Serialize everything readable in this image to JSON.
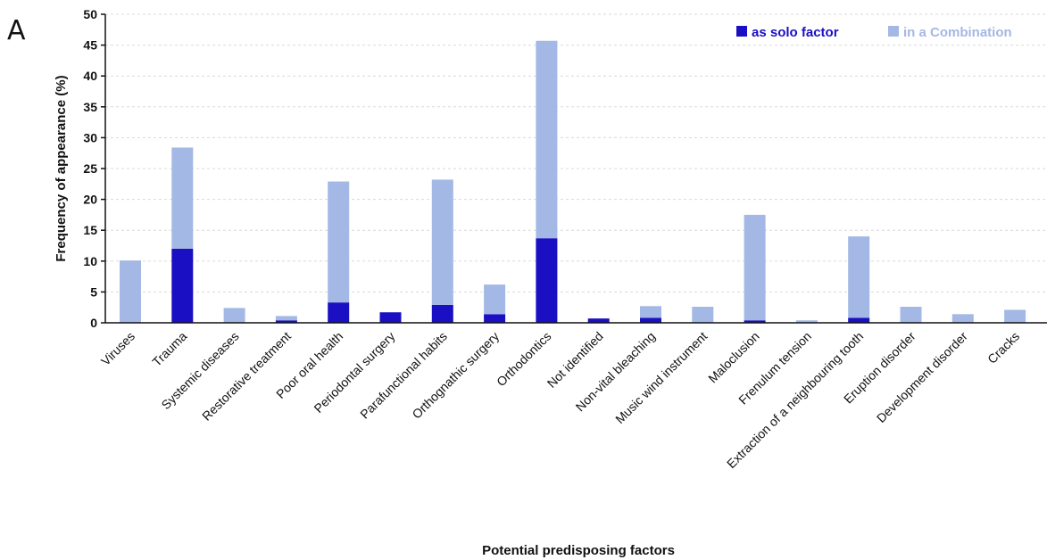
{
  "panel_label": "A",
  "chart_data": {
    "type": "bar",
    "stacked": true,
    "categories": [
      "Viruses",
      "Trauma",
      "Systemic diseases",
      "Restorative treatment",
      "Poor oral health",
      "Periodontal surgery",
      "Parafunctional habits",
      "Orthognathic surgery",
      "Orthodontics",
      "Not identified",
      "Non-vital bleaching",
      "Music wind instrument",
      "Maloclusion",
      "Frenulum tension",
      "Extraction of a neighbouring tooth",
      "Eruption disorder",
      "Development disorder",
      "Cracks"
    ],
    "series": [
      {
        "name": "as solo factor",
        "color": "#1a0fc2",
        "values": [
          0,
          12.0,
          0,
          0.4,
          3.3,
          1.7,
          2.9,
          1.4,
          13.7,
          0.7,
          0.8,
          0,
          0.4,
          0,
          0.8,
          0,
          0,
          0
        ]
      },
      {
        "name": "in a Combination",
        "color": "#a3b8e4",
        "values": [
          10.1,
          16.4,
          2.4,
          0.7,
          19.6,
          0,
          20.3,
          4.8,
          32.0,
          0,
          1.9,
          2.6,
          17.1,
          0.4,
          13.2,
          2.6,
          1.4,
          2.1
        ]
      }
    ],
    "xlabel": "Potential predisposing factors",
    "ylabel": "Frequency of appearance (%)",
    "ylim": [
      0,
      50
    ],
    "yticks": [
      0,
      5,
      10,
      15,
      20,
      25,
      30,
      35,
      40,
      45,
      50
    ],
    "grid": true,
    "legend": "top-right"
  }
}
